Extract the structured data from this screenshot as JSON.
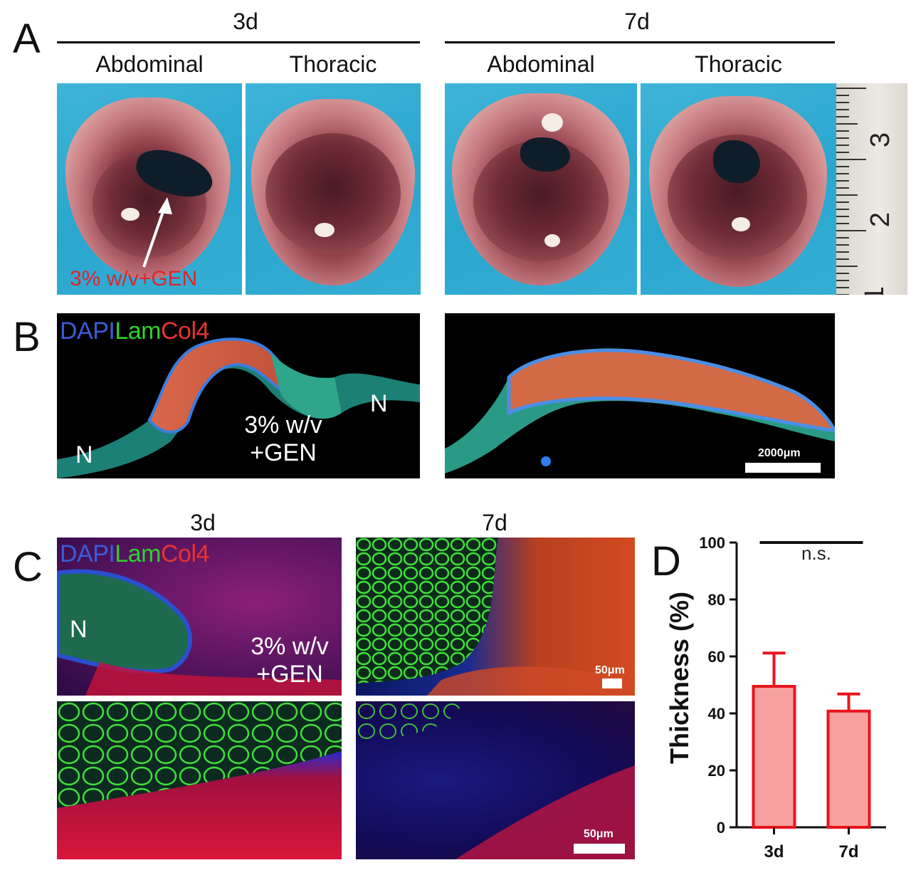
{
  "panel_letters": {
    "a": "A",
    "b": "B",
    "c": "C",
    "d": "D"
  },
  "panel_a": {
    "group_3d": "3d",
    "group_7d": "7d",
    "label_abdominal_3d": "Abdominal",
    "label_thoracic_3d": "Thoracic",
    "label_abdominal_7d": "Abdominal",
    "label_thoracic_7d": "Thoracic",
    "annotation": "3% w/v+GEN",
    "ruler_numbers": [
      "3",
      "2",
      "1"
    ]
  },
  "panel_b": {
    "stain_dapi": "DAPI",
    "stain_lam": "Lam",
    "stain_col4": "Col4",
    "label_n_left": "N",
    "label_n_right": "N",
    "label_gel": "3% w/v\n+GEN",
    "scale_text": "2000μm"
  },
  "panel_c": {
    "col_3d": "3d",
    "col_7d": "7d",
    "stain_dapi": "DAPI",
    "stain_lam": "Lam",
    "stain_col4": "Col4",
    "label_n": "N",
    "label_gel": "3% w/v\n+GEN",
    "scale_text_top": "50μm",
    "scale_text_bottom": "50μm"
  },
  "colors": {
    "bar_fill": "#f7a0a0",
    "bar_stroke": "#e8141c",
    "dapi": "#3c5bd8",
    "lam": "#2ed12e",
    "col4": "#e83232"
  },
  "chart_data": {
    "type": "bar",
    "categories": [
      "3d",
      "7d"
    ],
    "values": [
      49.5,
      40.8
    ],
    "error_upper": [
      61.2,
      46.8
    ],
    "ylabel": "Thickness (%)",
    "ylim": [
      0,
      100
    ],
    "yticks": [
      0,
      20,
      40,
      60,
      80,
      100
    ],
    "annotation": "n.s.",
    "grid": false
  }
}
